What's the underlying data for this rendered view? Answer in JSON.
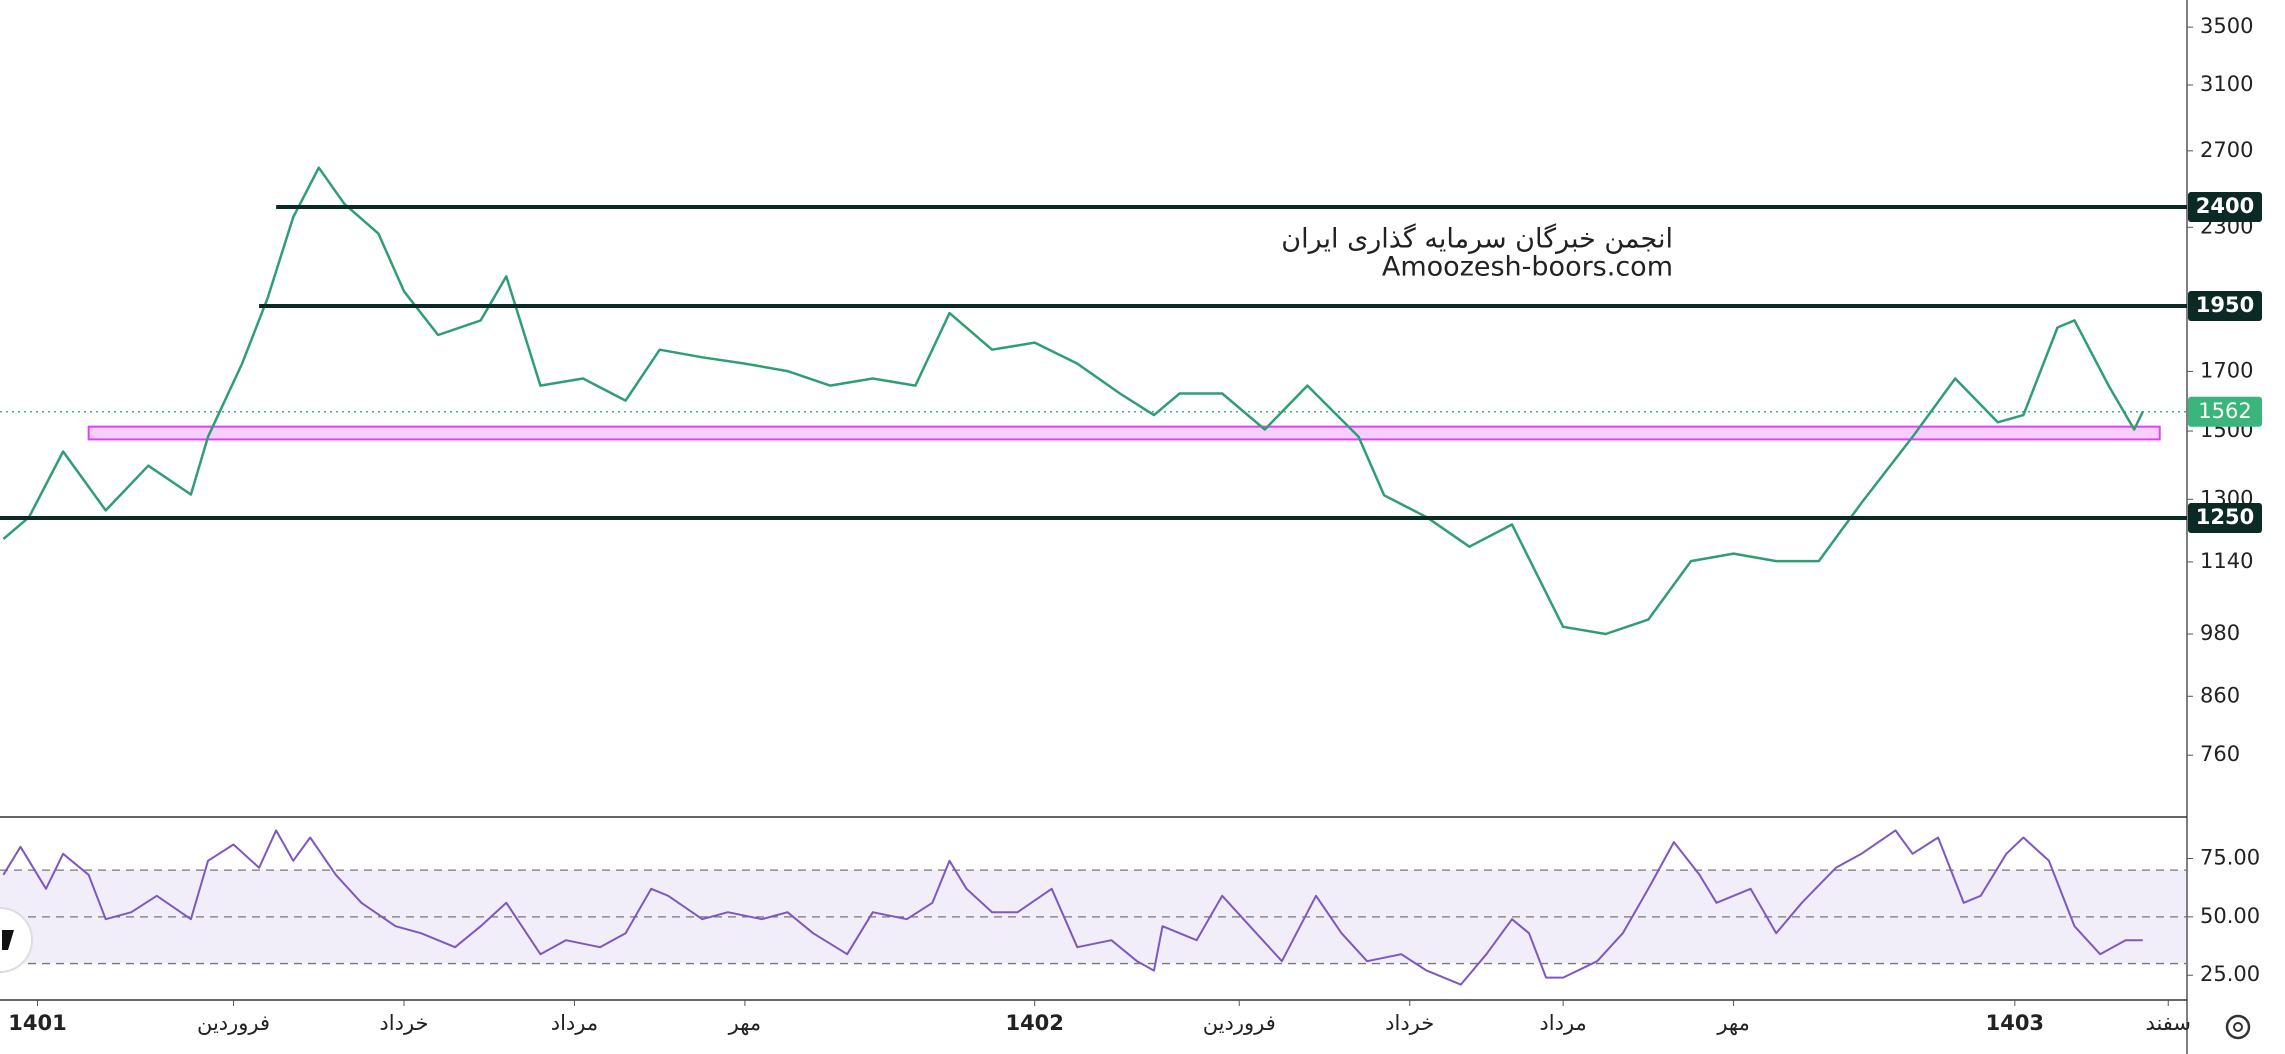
{
  "chart_data": [
    {
      "type": "line",
      "log_scale": true,
      "color": "#2f9e72",
      "annotations": [
        "انجمن خبرگان سرمایه گذاری ایران",
        "Amoozesh-boors.com"
      ],
      "ylim": [
        669,
        3705
      ],
      "yticks": [
        3500,
        3100,
        2700,
        2300,
        1700,
        1500,
        1300,
        1140,
        980,
        860,
        760
      ],
      "levels": [
        {
          "value": 2400,
          "from": 0.5
        },
        {
          "value": 1950,
          "from": 0.3
        },
        {
          "value": 1250,
          "from": -2.74
        }
      ],
      "zone": {
        "low": 1474,
        "high": 1514,
        "from": -1.7,
        "to": 22.6,
        "color": "#e040fb"
      },
      "last_price": 1562,
      "last_color": "#3bb57c",
      "x": [
        -2.7,
        -2.4,
        -2.0,
        -1.5,
        -1.0,
        -0.5,
        -0.3,
        0.1,
        0.4,
        0.7,
        1.0,
        1.3,
        1.7,
        2.0,
        2.4,
        2.9,
        3.2,
        3.6,
        4.1,
        4.6,
        5.0,
        5.5,
        6.0,
        6.5,
        7.0,
        7.5,
        8.0,
        8.4,
        8.9,
        9.4,
        9.9,
        10.4,
        10.8,
        11.1,
        11.6,
        12.1,
        12.6,
        13.2,
        13.5,
        14.0,
        14.5,
        15.0,
        15.6,
        16.1,
        16.6,
        17.1,
        17.6,
        18.1,
        18.6,
        19.1,
        19.7,
        20.2,
        20.7,
        21.0,
        21.4,
        21.6,
        22.0,
        22.3,
        22.4
      ],
      "values": [
        1196,
        1252,
        1437,
        1270,
        1395,
        1313,
        1482,
        1728,
        1982,
        2349,
        2606,
        2416,
        2270,
        2011,
        1835,
        1892,
        2075,
        1650,
        1675,
        1599,
        1779,
        1751,
        1728,
        1701,
        1650,
        1675,
        1650,
        1921,
        1779,
        1806,
        1728,
        1623,
        1551,
        1623,
        1623,
        1505,
        1650,
        1482,
        1311,
        1252,
        1177,
        1233,
        995,
        980,
        1010,
        1142,
        1160,
        1142,
        1142,
        1290,
        1482,
        1675,
        1528,
        1551,
        1864,
        1892,
        1650,
        1505,
        1562
      ]
    },
    {
      "type": "line",
      "color": "#7e57c2",
      "ylim": [
        14.4,
        91.9
      ],
      "yticks": [
        {
          "value": 75,
          "label": "75.00"
        },
        {
          "value": 50,
          "label": "50.00"
        },
        {
          "value": 25,
          "label": "25.00"
        }
      ],
      "band": [
        30,
        70
      ],
      "dashed": [
        70,
        50,
        30
      ],
      "xlim": [
        -2.74,
        22.92
      ],
      "xticks": [
        {
          "value": -2.3,
          "label": "1401"
        },
        {
          "value": 0,
          "label": "فروردین"
        },
        {
          "value": 2,
          "label": "خرداد"
        },
        {
          "value": 4,
          "label": "مرداد"
        },
        {
          "value": 6,
          "label": "مهر"
        },
        {
          "value": 9.4,
          "label": "1402"
        },
        {
          "value": 11.8,
          "label": "فروردین"
        },
        {
          "value": 13.8,
          "label": "خرداد"
        },
        {
          "value": 15.6,
          "label": "مرداد"
        },
        {
          "value": 17.6,
          "label": "مهر"
        },
        {
          "value": 20.9,
          "label": "1403"
        },
        {
          "value": 22.7,
          "label": "سفند"
        }
      ],
      "x": [
        -2.7,
        -2.5,
        -2.2,
        -2.0,
        -1.7,
        -1.5,
        -1.2,
        -0.9,
        -0.5,
        -0.3,
        0,
        0.3,
        0.5,
        0.7,
        0.9,
        1.2,
        1.5,
        1.9,
        2.2,
        2.6,
        2.9,
        3.2,
        3.6,
        3.9,
        4.3,
        4.6,
        4.9,
        5.1,
        5.5,
        5.8,
        6.2,
        6.5,
        6.8,
        7.2,
        7.5,
        7.9,
        8.2,
        8.4,
        8.6,
        8.9,
        9.2,
        9.6,
        9.9,
        10.3,
        10.6,
        10.8,
        10.9,
        11.3,
        11.6,
        12.0,
        12.3,
        12.7,
        13.0,
        13.3,
        13.7,
        14.0,
        14.4,
        14.7,
        15.0,
        15.2,
        15.4,
        15.6,
        16.0,
        16.3,
        16.6,
        16.9,
        17.2,
        17.4,
        17.8,
        18.1,
        18.4,
        18.8,
        19.1,
        19.5,
        19.7,
        20.0,
        20.3,
        20.5,
        20.8,
        21.0,
        21.3,
        21.6,
        21.9,
        22.2,
        22.4
      ],
      "values": [
        68,
        80,
        62,
        77,
        68,
        49,
        52,
        59,
        49,
        74,
        81,
        71,
        87,
        74,
        84,
        68,
        56,
        46,
        43,
        37,
        46,
        56,
        34,
        40,
        37,
        43,
        62,
        59,
        49,
        52,
        49,
        52,
        43,
        34,
        52,
        49,
        56,
        74,
        62,
        52,
        52,
        62,
        37,
        40,
        31,
        27,
        46,
        40,
        59,
        43,
        31,
        59,
        43,
        31,
        34,
        27,
        21,
        34,
        49,
        43,
        24,
        24,
        31,
        43,
        62,
        82,
        68,
        56,
        62,
        43,
        56,
        71,
        77,
        87,
        77,
        84,
        56,
        59,
        77,
        84,
        74,
        46,
        34,
        40,
        40
      ]
    }
  ]
}
